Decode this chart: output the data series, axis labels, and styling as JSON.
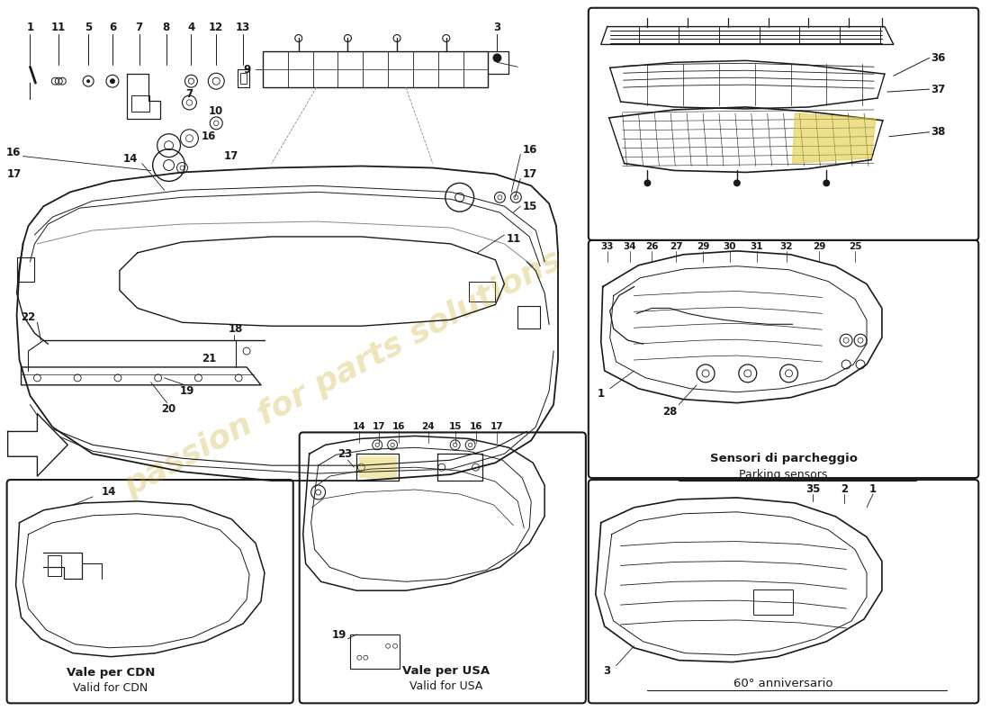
{
  "bg_color": "#ffffff",
  "line_color": "#1a1a1a",
  "watermark_text": "passion for parts solutions",
  "watermark_color": "#c8a820",
  "watermark_alpha": 0.3,
  "right_box2_title_it": "Sensori di parcheggio",
  "right_box2_title_en": "Parking sensors",
  "right_box3_title": "60° anniversario",
  "bottom_left_title_it": "Vale per CDN",
  "bottom_left_title_en": "Valid for CDN",
  "bottom_mid_title_it": "Vale per USA",
  "bottom_mid_title_en": "Valid for USA"
}
